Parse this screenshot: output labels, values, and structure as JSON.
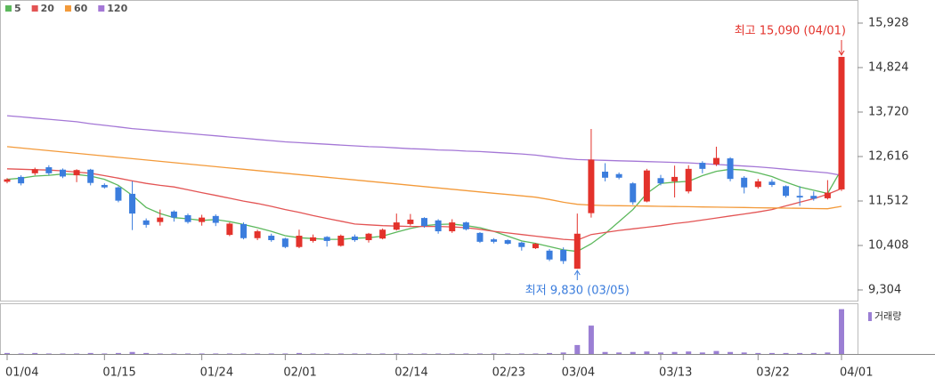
{
  "chart_data": {
    "type": "candlestick",
    "categories": [
      "01/04",
      null,
      null,
      null,
      null,
      null,
      null,
      "01/15",
      null,
      null,
      null,
      null,
      null,
      null,
      "01/24",
      null,
      null,
      null,
      null,
      null,
      "02/01",
      null,
      null,
      null,
      null,
      null,
      null,
      null,
      "02/14",
      null,
      null,
      null,
      null,
      null,
      null,
      "02/23",
      null,
      null,
      null,
      null,
      "03/04",
      null,
      null,
      null,
      null,
      null,
      null,
      "03/13",
      null,
      null,
      null,
      null,
      null,
      null,
      "03/22",
      null,
      null,
      null,
      null,
      null,
      "04/01"
    ],
    "open": [
      11990,
      12110,
      12200,
      12350,
      12290,
      12150,
      12290,
      11910,
      11850,
      11690,
      11030,
      10990,
      11250,
      11160,
      10990,
      11140,
      10670,
      10940,
      10590,
      10650,
      10580,
      10370,
      10520,
      10620,
      10400,
      10630,
      10540,
      10580,
      10800,
      10940,
      11090,
      11030,
      10760,
      10980,
      10720,
      10560,
      10540,
      10480,
      10340,
      10280,
      10300,
      9830,
      11210,
      12240,
      12180,
      11950,
      11500,
      12080,
      12000,
      11750,
      12460,
      12420,
      12570,
      12090,
      11860,
      11990,
      11880,
      11640,
      11640,
      11580,
      11800
    ],
    "high": [
      12080,
      12150,
      12340,
      12400,
      12320,
      12300,
      12310,
      11950,
      11880,
      12000,
      11080,
      11300,
      11280,
      11200,
      11170,
      11180,
      10980,
      10980,
      10800,
      10700,
      10600,
      10800,
      10680,
      10640,
      10680,
      10680,
      10720,
      10830,
      11200,
      11190,
      11110,
      11060,
      11060,
      11000,
      10740,
      10590,
      10560,
      10500,
      10470,
      10320,
      10360,
      11200,
      13300,
      12450,
      12220,
      11980,
      12310,
      12160,
      12390,
      12400,
      12500,
      12860,
      12600,
      12130,
      12060,
      12050,
      11900,
      11880,
      11750,
      12030,
      15090
    ],
    "low": [
      11950,
      11900,
      12150,
      12150,
      12080,
      11980,
      11900,
      11820,
      11480,
      10790,
      10850,
      10900,
      11000,
      10950,
      10900,
      10890,
      10640,
      10560,
      10540,
      10500,
      10340,
      10340,
      10480,
      10380,
      10380,
      10500,
      10480,
      10560,
      10780,
      10900,
      10850,
      10700,
      10720,
      10780,
      10470,
      10460,
      10430,
      10280,
      10320,
      10020,
      9950,
      9830,
      11100,
      12000,
      12050,
      11420,
      11480,
      11900,
      11600,
      11700,
      12200,
      12380,
      12000,
      11700,
      11820,
      11860,
      11600,
      11390,
      11520,
      11550,
      11760
    ],
    "close": [
      12050,
      11950,
      12300,
      12200,
      12120,
      12280,
      11960,
      11850,
      11520,
      11200,
      10920,
      11100,
      11100,
      10990,
      11100,
      10970,
      10950,
      10590,
      10760,
      10540,
      10370,
      10650,
      10610,
      10520,
      10650,
      10540,
      10700,
      10800,
      10980,
      11050,
      10890,
      10760,
      10980,
      10810,
      10500,
      10500,
      10450,
      10370,
      10450,
      10060,
      10020,
      10700,
      12540,
      12090,
      12090,
      11480,
      12270,
      11950,
      12110,
      12310,
      12310,
      12580,
      12060,
      11850,
      12000,
      11910,
      11640,
      11600,
      11570,
      11720,
      15090
    ],
    "up_color": "#e3322b",
    "down_color": "#3b7ddd",
    "ylim": [
      9039,
      16325
    ],
    "yticks": [
      {
        "value": 15928,
        "label": "15,928"
      },
      {
        "value": 14824,
        "label": "14,824"
      },
      {
        "value": 13720,
        "label": "13,720"
      },
      {
        "value": 12616,
        "label": "12,616"
      },
      {
        "value": 11512,
        "label": "11,512"
      },
      {
        "value": 10408,
        "label": "10,408"
      },
      {
        "value": 9304,
        "label": "9,304"
      }
    ],
    "series": [
      {
        "name": "5",
        "color": "#5cb85c",
        "values": [
          12050,
          12080,
          12130,
          12150,
          12180,
          12170,
          12130,
          12050,
          11900,
          11650,
          11350,
          11200,
          11100,
          11070,
          11030,
          11050,
          11000,
          10930,
          10850,
          10760,
          10650,
          10600,
          10580,
          10560,
          10560,
          10590,
          10600,
          10640,
          10740,
          10830,
          10900,
          10930,
          10940,
          10900,
          10850,
          10760,
          10640,
          10520,
          10460,
          10380,
          10300,
          10260,
          10450,
          10700,
          11000,
          11300,
          11700,
          11950,
          11980,
          12000,
          12140,
          12250,
          12300,
          12280,
          12210,
          12120,
          11980,
          11860,
          11780,
          11700,
          12300
        ]
      },
      {
        "name": "20",
        "color": "#e35454",
        "values": [
          12310,
          12300,
          12290,
          12280,
          12260,
          12230,
          12200,
          12140,
          12080,
          12010,
          11950,
          11900,
          11860,
          11790,
          11720,
          11650,
          11580,
          11510,
          11450,
          11380,
          11300,
          11230,
          11150,
          11080,
          11010,
          10940,
          10920,
          10900,
          10890,
          10880,
          10880,
          10880,
          10870,
          10850,
          10810,
          10760,
          10720,
          10680,
          10640,
          10600,
          10560,
          10540,
          10680,
          10730,
          10780,
          10820,
          10860,
          10900,
          10950,
          10990,
          11040,
          11090,
          11140,
          11190,
          11240,
          11300,
          11390,
          11480,
          11570,
          11680,
          11820
        ]
      },
      {
        "name": "60",
        "color": "#f39a3a",
        "values": [
          12860,
          12827,
          12794,
          12761,
          12728,
          12695,
          12662,
          12629,
          12596,
          12563,
          12530,
          12497,
          12464,
          12431,
          12398,
          12365,
          12332,
          12299,
          12266,
          12233,
          12200,
          12167,
          12134,
          12101,
          12068,
          12035,
          12002,
          11969,
          11936,
          11903,
          11870,
          11837,
          11804,
          11771,
          11738,
          11705,
          11672,
          11639,
          11606,
          11550,
          11480,
          11430,
          11410,
          11400,
          11395,
          11390,
          11385,
          11380,
          11375,
          11370,
          11365,
          11360,
          11355,
          11350,
          11345,
          11340,
          11335,
          11330,
          11325,
          11320,
          11380
        ]
      },
      {
        "name": "120",
        "color": "#a477d6",
        "values": [
          13630,
          13600,
          13570,
          13540,
          13510,
          13480,
          13430,
          13390,
          13350,
          13310,
          13280,
          13250,
          13220,
          13190,
          13160,
          13130,
          13100,
          13070,
          13040,
          13010,
          12980,
          12960,
          12940,
          12920,
          12900,
          12880,
          12860,
          12850,
          12830,
          12810,
          12800,
          12780,
          12770,
          12750,
          12740,
          12720,
          12700,
          12680,
          12650,
          12610,
          12570,
          12540,
          12530,
          12520,
          12510,
          12500,
          12490,
          12480,
          12470,
          12460,
          12440,
          12420,
          12400,
          12380,
          12360,
          12330,
          12300,
          12270,
          12240,
          12210,
          12150
        ]
      }
    ],
    "annotations": [
      {
        "text": "최고 15,090 (04/01)",
        "color": "#e3322b"
      },
      {
        "text": "최저 9,830 (03/05)",
        "color": "#3b7ddd"
      }
    ],
    "volume": {
      "name": "거래량",
      "color": "#9b7fd4",
      "ylim": [
        0,
        100
      ],
      "values": [
        2,
        1,
        2,
        1,
        1,
        1,
        2,
        1,
        2,
        4,
        2,
        1,
        1,
        1,
        1,
        1,
        1,
        1,
        1,
        1,
        1,
        2,
        1,
        1,
        1,
        1,
        1,
        1,
        1,
        1,
        1,
        1,
        1,
        1,
        1,
        1,
        1,
        1,
        1,
        2,
        3,
        18,
        57,
        4,
        3,
        4,
        5,
        3,
        4,
        5,
        3,
        6,
        4,
        3,
        2,
        2,
        2,
        2,
        2,
        3,
        90
      ]
    }
  }
}
